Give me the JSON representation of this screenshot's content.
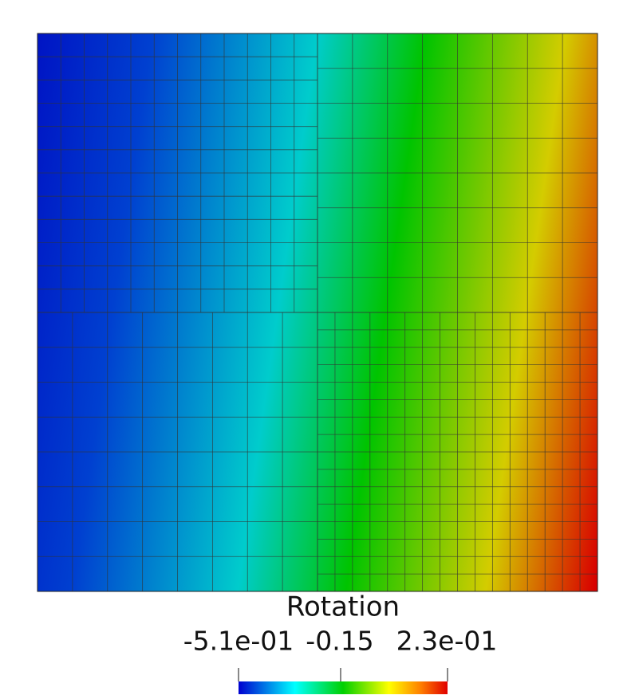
{
  "legend": {
    "title": "Rotation",
    "tick_labels": [
      "-5.1e-01",
      "-0.15",
      "2.3e-01"
    ]
  }
}
